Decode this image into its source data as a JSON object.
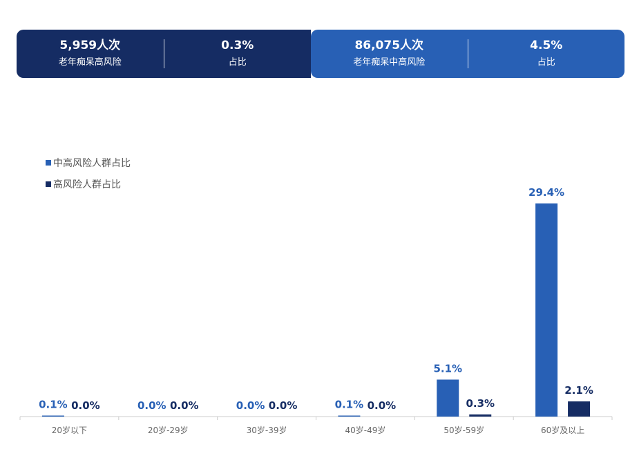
{
  "banner": {
    "high_risk": {
      "value": "5,959人次",
      "label": "老年痴呆高风险"
    },
    "high_risk_share": {
      "value": "0.3%",
      "label": "占比"
    },
    "mid_high_risk": {
      "value": "86,075人次",
      "label": "老年痴呆中高风险"
    },
    "mid_high_risk_share": {
      "value": "4.5%",
      "label": "占比"
    }
  },
  "colors": {
    "mid_high": "#2860b5",
    "high": "#152c63",
    "axis": "#cccccc"
  },
  "chart_data": {
    "type": "bar",
    "title": "",
    "xlabel": "",
    "ylabel": "",
    "ylim": [
      0,
      30
    ],
    "legend_position": "top-left",
    "categories": [
      "20岁以下",
      "20岁-29岁",
      "30岁-39岁",
      "40岁-49岁",
      "50岁-59岁",
      "60岁及以上"
    ],
    "series": [
      {
        "name": "中高风险人群占比",
        "color": "#2860b5",
        "values": [
          0.1,
          0.0,
          0.0,
          0.1,
          5.1,
          29.4
        ],
        "labels": [
          "0.1%",
          "0.0%",
          "0.0%",
          "0.1%",
          "5.1%",
          "29.4%"
        ]
      },
      {
        "name": "高风险人群占比",
        "color": "#152c63",
        "values": [
          0.0,
          0.0,
          0.0,
          0.0,
          0.3,
          2.1
        ],
        "labels": [
          "0.0%",
          "0.0%",
          "0.0%",
          "0.0%",
          "0.3%",
          "2.1%"
        ]
      }
    ]
  }
}
